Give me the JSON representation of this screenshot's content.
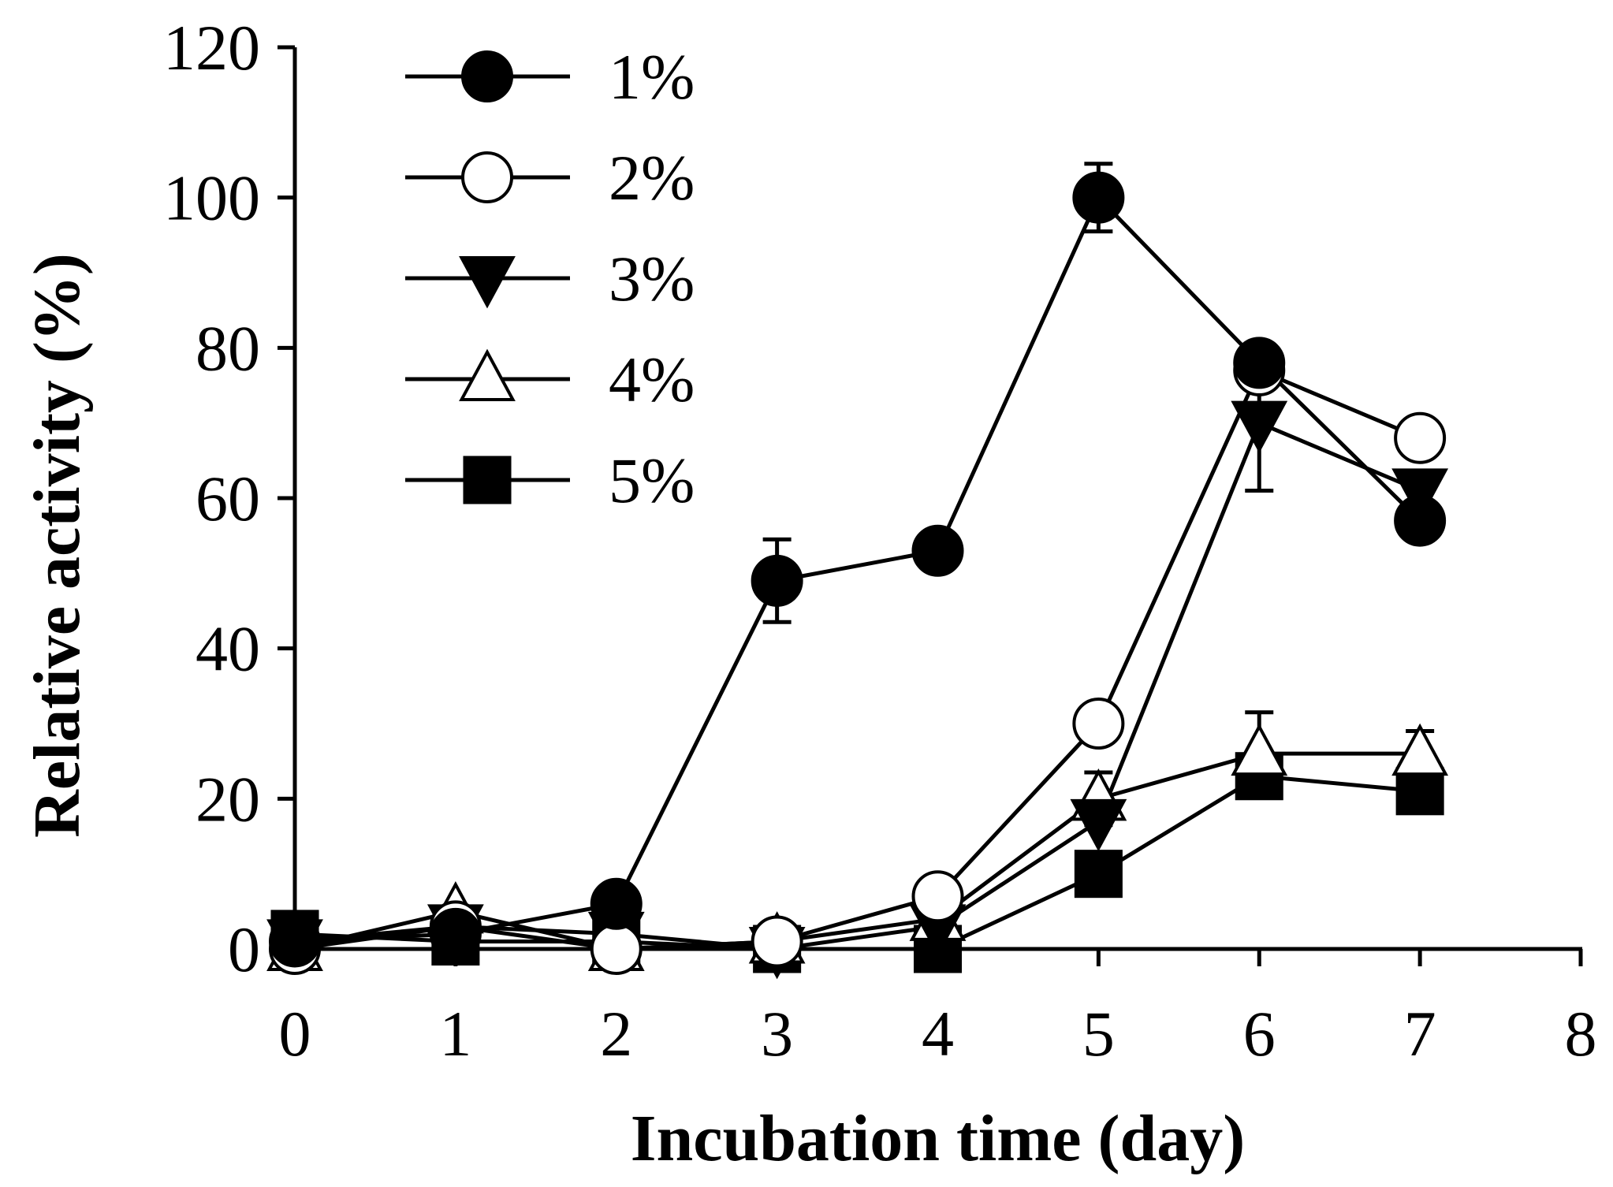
{
  "chart_data": {
    "type": "line",
    "title": "",
    "xlabel": "Incubation time (day)",
    "ylabel": "Relative activity (%)",
    "xlim": [
      0,
      8
    ],
    "ylim": [
      0,
      120
    ],
    "xticks": [
      0,
      1,
      2,
      3,
      4,
      5,
      6,
      7,
      8
    ],
    "yticks": [
      0,
      20,
      40,
      60,
      80,
      100,
      120
    ],
    "grid": false,
    "legend_position": "top-left",
    "x": [
      0,
      1,
      2,
      3,
      4,
      5,
      6,
      7
    ],
    "series": [
      {
        "name": "1%",
        "marker": "circle",
        "fill": "#000000",
        "values": [
          1,
          2,
          6,
          49,
          53,
          100,
          78,
          57
        ],
        "errors": [
          0,
          0,
          0,
          5.5,
          0,
          4.5,
          0,
          0
        ]
      },
      {
        "name": "2%",
        "marker": "circle",
        "fill": "#ffffff",
        "values": [
          0,
          3,
          0,
          1,
          7,
          30,
          77,
          68
        ],
        "errors": [
          0,
          0,
          0,
          0,
          0,
          2.5,
          0,
          0
        ]
      },
      {
        "name": "3%",
        "marker": "triangle-down",
        "fill": "#000000",
        "values": [
          1,
          3,
          2,
          0,
          3,
          17,
          70,
          61
        ],
        "errors": [
          0,
          0,
          0,
          0,
          0,
          0,
          9,
          0
        ]
      },
      {
        "name": "4%",
        "marker": "triangle-up",
        "fill": "#ffffff",
        "values": [
          0,
          5,
          0,
          1,
          4,
          20,
          26,
          26
        ],
        "errors": [
          0,
          0,
          0,
          0,
          0,
          3.5,
          5.5,
          3
        ]
      },
      {
        "name": "5%",
        "marker": "square",
        "fill": "#000000",
        "values": [
          2,
          1,
          1,
          0,
          0,
          10,
          23,
          21
        ],
        "errors": [
          0,
          0,
          0,
          0,
          0,
          0,
          0,
          0
        ]
      }
    ]
  }
}
